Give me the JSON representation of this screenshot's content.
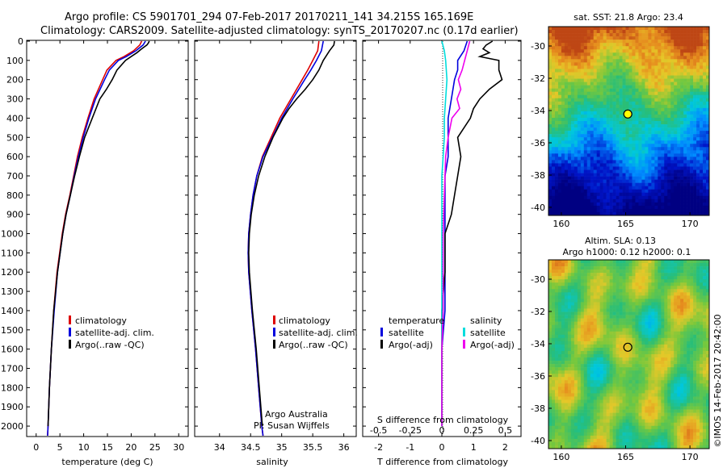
{
  "title_line1": "Argo profile: CS 5901701_294 07-Feb-2017 20170211_141 34.215S 165.169E",
  "title_line2": "Climatology: CARS2009. Satellite-adjusted climatology: synTS_20170207.nc (0.17d earlier)",
  "chart_data": [
    {
      "type": "line",
      "id": "temperature",
      "xlabel": "temperature (deg C)",
      "ylabel": "",
      "xlim": [
        -2,
        32
      ],
      "ylim": [
        2050,
        0
      ],
      "xticks": [
        0,
        5,
        10,
        15,
        20,
        25,
        30
      ],
      "yticks": [
        0,
        100,
        200,
        300,
        400,
        500,
        600,
        700,
        800,
        900,
        1000,
        1100,
        1200,
        1300,
        1400,
        1500,
        1600,
        1700,
        1800,
        1900,
        2000
      ],
      "legend": [
        "climatology",
        "satellite-adj. clim.",
        "Argo(..raw -QC)"
      ],
      "series": [
        {
          "name": "climatology",
          "color": "#dd0000",
          "depth": [
            0,
            20,
            50,
            80,
            100,
            150,
            200,
            300,
            400,
            500,
            600,
            700,
            800,
            900,
            1000,
            1200,
            1400,
            1600,
            1800,
            2000,
            2050
          ],
          "values": [
            22.2,
            21.8,
            20.5,
            18.5,
            16.8,
            14.9,
            14.0,
            12.2,
            10.9,
            9.7,
            8.7,
            7.9,
            7.1,
            6.2,
            5.5,
            4.4,
            3.7,
            3.2,
            2.8,
            2.5,
            2.4
          ]
        },
        {
          "name": "satellite-adj. clim.",
          "color": "#0000dd",
          "depth": [
            0,
            20,
            50,
            80,
            100,
            150,
            200,
            300,
            400,
            500,
            600,
            700,
            800,
            900,
            1000,
            1200,
            1400,
            1600,
            1800,
            2000,
            2050
          ],
          "values": [
            23.0,
            22.5,
            21.0,
            19.0,
            17.3,
            15.4,
            14.4,
            12.5,
            11.1,
            9.9,
            8.9,
            8.0,
            7.2,
            6.3,
            5.6,
            4.5,
            3.8,
            3.2,
            2.8,
            2.5,
            2.4
          ]
        },
        {
          "name": "Argo(..raw -QC)",
          "color": "#000000",
          "depth": [
            0,
            10,
            20,
            40,
            60,
            80,
            100,
            150,
            200,
            250,
            300,
            400,
            500,
            600,
            700,
            800,
            900,
            1000,
            1200,
            1400,
            1600,
            1800,
            2000
          ],
          "values": [
            23.8,
            23.6,
            23.3,
            22.2,
            21.2,
            20.0,
            18.8,
            17.0,
            16.0,
            14.8,
            13.4,
            11.8,
            10.2,
            9.1,
            8.1,
            7.2,
            6.3,
            5.6,
            4.5,
            3.7,
            3.2,
            2.8,
            2.5
          ]
        }
      ]
    },
    {
      "type": "line",
      "id": "salinity",
      "xlabel": "salinity",
      "ylabel": "",
      "xlim": [
        33.6,
        36.2
      ],
      "ylim": [
        2050,
        0
      ],
      "xticks": [
        34,
        34.5,
        35,
        35.5,
        36
      ],
      "legend": [
        "climatology",
        "satellite-adj. clim.",
        "Argo(..raw -QC)"
      ],
      "annotation": [
        "Argo Australia",
        "PI: Susan Wijffels"
      ],
      "series": [
        {
          "name": "climatology",
          "color": "#dd0000",
          "depth": [
            0,
            50,
            100,
            150,
            200,
            300,
            400,
            500,
            600,
            700,
            800,
            900,
            1000,
            1100,
            1200,
            1400,
            1600,
            1800,
            2000,
            2050
          ],
          "values": [
            35.6,
            35.58,
            35.5,
            35.42,
            35.33,
            35.15,
            34.97,
            34.83,
            34.69,
            34.6,
            34.54,
            34.5,
            34.47,
            34.46,
            34.47,
            34.52,
            34.58,
            34.63,
            34.68,
            34.7
          ]
        },
        {
          "name": "satellite-adj. clim.",
          "color": "#0000dd",
          "depth": [
            0,
            50,
            100,
            150,
            200,
            300,
            400,
            500,
            600,
            700,
            800,
            900,
            1000,
            1100,
            1200,
            1400,
            1600,
            1800,
            2000,
            2050
          ],
          "values": [
            35.67,
            35.64,
            35.56,
            35.47,
            35.37,
            35.18,
            35.0,
            34.85,
            34.7,
            34.6,
            34.54,
            34.5,
            34.47,
            34.46,
            34.47,
            34.52,
            34.58,
            34.63,
            34.68,
            34.7
          ]
        },
        {
          "name": "Argo(..raw -QC)",
          "color": "#000000",
          "depth": [
            0,
            20,
            50,
            100,
            150,
            200,
            250,
            300,
            350,
            400,
            500,
            600,
            700,
            800,
            900,
            1000,
            1100,
            1200,
            1400,
            1600,
            1800,
            2000
          ],
          "values": [
            35.85,
            35.84,
            35.77,
            35.67,
            35.6,
            35.5,
            35.38,
            35.24,
            35.12,
            35.02,
            34.86,
            34.73,
            34.63,
            34.56,
            34.51,
            34.48,
            34.47,
            34.48,
            34.53,
            34.59,
            34.64,
            34.69
          ]
        }
      ]
    },
    {
      "type": "line",
      "id": "difference",
      "xlabel": "T difference from climatology",
      "xlabel_top": "S difference from climatology",
      "xlim": [
        -2.5,
        2.5
      ],
      "ylim": [
        2050,
        0
      ],
      "xticks": [
        -2,
        -1,
        0,
        1,
        2
      ],
      "s_ticks": [
        "-0.5",
        "-0.25",
        "0",
        "0.25",
        "0.5"
      ],
      "legend_temperature": {
        "header": "temperature",
        "items": [
          "satellite",
          "Argo(-adj)"
        ]
      },
      "legend_salinity": {
        "header": "salinity",
        "items": [
          "satellite",
          "Argo(-adj)"
        ]
      },
      "series": [
        {
          "name": "T satellite",
          "color": "#0000dd",
          "depth": [
            0,
            50,
            100,
            150,
            200,
            300,
            400,
            500,
            600,
            700,
            800,
            1000,
            1200,
            1400,
            1600,
            1800,
            2000
          ],
          "values": [
            0.8,
            0.7,
            0.5,
            0.5,
            0.4,
            0.3,
            0.2,
            0.2,
            0.2,
            0.1,
            0.1,
            0.1,
            0.1,
            0.1,
            0.0,
            0.0,
            0.0
          ]
        },
        {
          "name": "T Argo(-adj)",
          "color": "#000000",
          "depth": [
            0,
            20,
            40,
            60,
            80,
            100,
            150,
            200,
            250,
            300,
            350,
            400,
            500,
            600,
            700,
            800,
            900,
            1000,
            1200,
            1400,
            1600,
            1800,
            2000
          ],
          "values": [
            1.6,
            1.4,
            1.3,
            1.5,
            1.2,
            1.8,
            1.8,
            1.9,
            1.5,
            1.2,
            1.0,
            0.9,
            0.5,
            0.6,
            0.5,
            0.4,
            0.3,
            0.1,
            0.1,
            0.0,
            0.0,
            0.0,
            0.0
          ]
        },
        {
          "name": "S satellite",
          "color": "#00dddd",
          "depth": [
            0,
            50,
            100,
            200,
            300,
            400,
            500,
            600,
            700,
            800,
            1000,
            1200,
            1400,
            1600,
            1800,
            2000
          ],
          "values": [
            0.0,
            0.02,
            0.03,
            0.04,
            0.03,
            0.02,
            0.02,
            0.01,
            0.0,
            0.0,
            0.0,
            0.0,
            0.0,
            0.0,
            0.0,
            0.0
          ]
        },
        {
          "name": "S Argo(-adj)",
          "color": "#ee00ee",
          "depth": [
            0,
            50,
            100,
            150,
            200,
            250,
            300,
            350,
            400,
            500,
            600,
            800,
            1000,
            1200,
            1400,
            1600,
            1800,
            2000
          ],
          "values": [
            0.22,
            0.2,
            0.18,
            0.16,
            0.13,
            0.15,
            0.12,
            0.14,
            0.08,
            0.05,
            0.03,
            0.02,
            0.01,
            0.01,
            0.01,
            0.0,
            0.0,
            0.0
          ]
        }
      ]
    },
    {
      "type": "heatmap",
      "id": "sst-map",
      "title": "sat. SST: 21.8 Argo: 23.4",
      "xlim": [
        159,
        171.5
      ],
      "ylim": [
        -40.5,
        -28.8
      ],
      "xticks": [
        160,
        165,
        170
      ],
      "yticks": [
        -30,
        -32,
        -34,
        -36,
        -38,
        -40
      ],
      "argo_position": [
        165.169,
        -34.215
      ]
    },
    {
      "type": "heatmap",
      "id": "sla-map",
      "title_line1": "Altim. SLA: 0.13",
      "title_line2": "Argo h1000: 0.12 h2000: 0.1",
      "xlim": [
        159,
        171.5
      ],
      "ylim": [
        -40.5,
        -28.8
      ],
      "xticks": [
        160,
        165,
        170
      ],
      "yticks": [
        -30,
        -32,
        -34,
        -36,
        -38,
        -40
      ],
      "argo_position": [
        165.169,
        -34.215
      ]
    }
  ],
  "footer_credit": "©IMOS 14-Feb-2017 20:42:00"
}
